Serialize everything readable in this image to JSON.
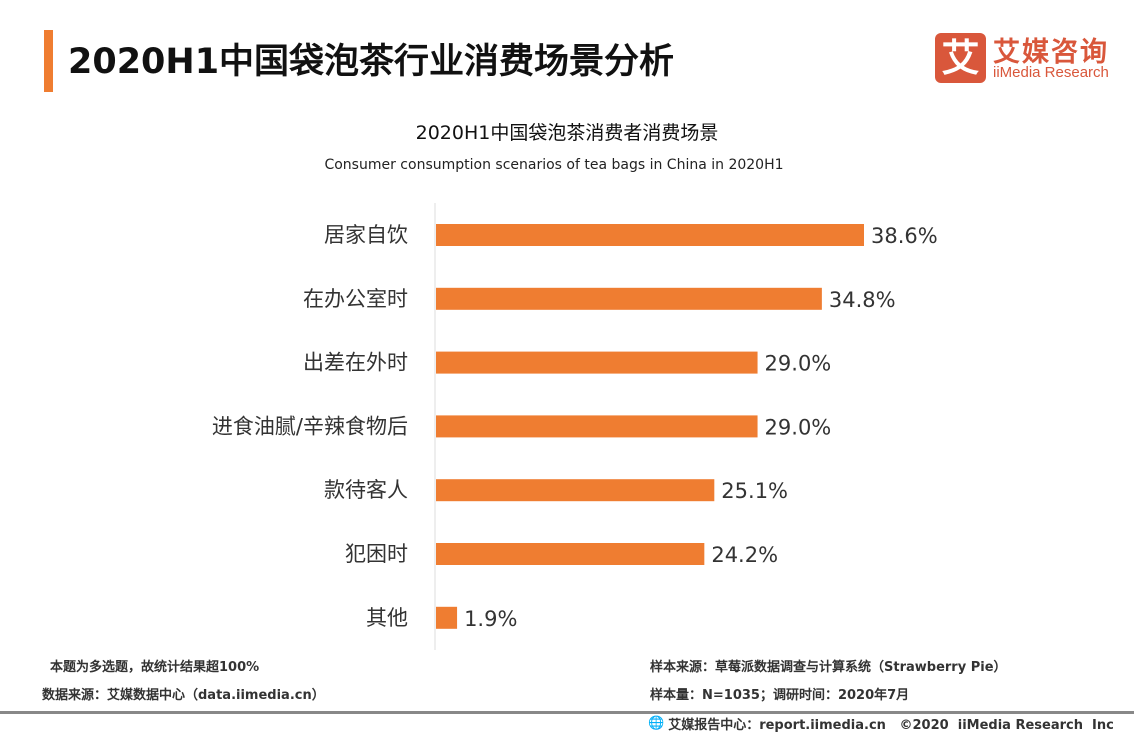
{
  "header": {
    "title": "2020H1中国袋泡茶行业消费场景分析",
    "logo_mark": "艾",
    "logo_cn": "艾媒咨询",
    "logo_en": "iiMedia Research"
  },
  "chart_data": {
    "type": "bar",
    "orientation": "horizontal",
    "title": "2020H1中国袋泡茶消费者消费场景",
    "subtitle": "Consumer consumption scenarios of tea bags in China in 2020H1",
    "categories": [
      "居家自饮",
      "在办公室时",
      "出差在外时",
      "进食油腻/辛辣食物后",
      "款待客人",
      "犯困时",
      "其他"
    ],
    "values": [
      38.6,
      34.8,
      29.0,
      29.0,
      25.1,
      24.2,
      1.9
    ],
    "labels": [
      "38.6%",
      "34.8%",
      "29.0%",
      "29.0%",
      "25.1%",
      "24.2%",
      "1.9%"
    ],
    "unit": "%",
    "bar_color": "#ef7d31",
    "grid": false
  },
  "footer": {
    "note": "本题为多选题，故统计结果超100%",
    "source": "数据来源：艾媒数据中心（data.iimedia.cn）",
    "sample_source": "样本来源：草莓派数据调查与计算系统（Strawberry Pie）",
    "sample_size": "样本量：N=1035；调研时间：2020年7月",
    "copyright": "艾媒报告中心：report.iimedia.cn   ©2020  iiMedia Research  Inc"
  }
}
